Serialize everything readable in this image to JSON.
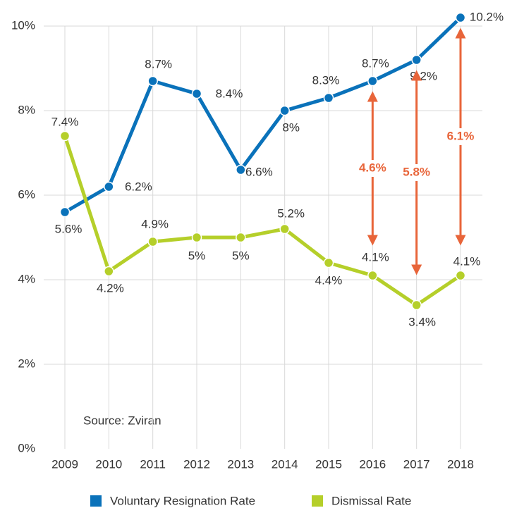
{
  "chart_data": {
    "type": "line",
    "categories": [
      "2009",
      "2010",
      "2011",
      "2012",
      "2013",
      "2014",
      "2015",
      "2016",
      "2017",
      "2018"
    ],
    "series": [
      {
        "name": "Voluntary Resignation Rate",
        "color": "#0a72ba",
        "values": [
          5.6,
          6.2,
          8.7,
          8.4,
          6.6,
          8,
          8.3,
          8.7,
          9.2,
          10.2
        ],
        "value_labels": [
          "5.6%",
          "6.2%",
          "8.7%",
          "8.4%",
          "6.6%",
          "8%",
          "8.3%",
          "8.7%",
          "9.2%",
          "10.2%"
        ]
      },
      {
        "name": "Dismissal Rate",
        "color": "#b5cf2a",
        "values": [
          7.4,
          4.2,
          4.9,
          5,
          5,
          5.2,
          4.4,
          4.1,
          3.4,
          4.1
        ],
        "value_labels": [
          "7.4%",
          "4.2%",
          "4.9%",
          "5%",
          "5%",
          "5.2%",
          "4.4%",
          "4.1%",
          "3.4%",
          "4.1%"
        ]
      }
    ],
    "ylim": [
      0,
      10
    ],
    "yticks": [
      {
        "value": 0,
        "label": "0%"
      },
      {
        "value": 2,
        "label": "2%"
      },
      {
        "value": 4,
        "label": "4%"
      },
      {
        "value": 6,
        "label": "6%"
      },
      {
        "value": 8,
        "label": "8%"
      },
      {
        "value": 10,
        "label": "10%"
      }
    ],
    "grid": true,
    "annotations": [
      {
        "x": "2016",
        "label": "4.6%"
      },
      {
        "x": "2017",
        "label": "5.8%"
      },
      {
        "x": "2018",
        "label": "6.1%"
      }
    ],
    "annotation_color": "#e8653a",
    "source": "Source: Zviran",
    "legend": "bottom"
  }
}
